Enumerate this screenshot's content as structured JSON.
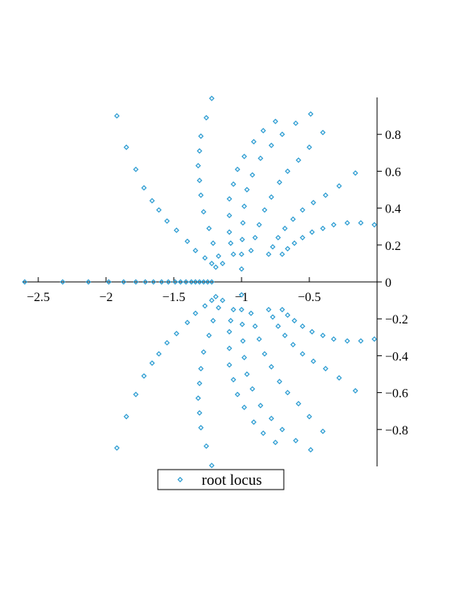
{
  "chart_data": {
    "type": "scatter",
    "series": [
      {
        "name": "root locus",
        "color": "#2a9bd1",
        "x": [
          -1.92,
          -1.85,
          -1.78,
          -1.72,
          -1.66,
          -1.61,
          -1.55,
          -1.48,
          -1.4,
          -1.34,
          -1.27,
          -1.22,
          -1.19,
          -1.22,
          -1.26,
          -1.3,
          -1.31,
          -1.32,
          -1.31,
          -1.3,
          -1.28,
          -1.24,
          -1.21,
          -1.17,
          -1.14,
          -0.75,
          -0.84,
          -0.91,
          -0.98,
          -1.03,
          -1.06,
          -1.09,
          -1.09,
          -1.09,
          -1.08,
          -1.06,
          -0.49,
          -0.6,
          -0.7,
          -0.78,
          -0.86,
          -0.92,
          -0.96,
          -0.98,
          -0.99,
          -0.995,
          -1.0,
          -1.0,
          -0.4,
          -0.5,
          -0.58,
          -0.66,
          -0.72,
          -0.78,
          -0.83,
          -0.87,
          -0.9,
          -0.93,
          -0.16,
          -0.28,
          -0.38,
          -0.47,
          -0.55,
          -0.62,
          -0.68,
          -0.73,
          -0.77,
          -0.8,
          -0.02,
          -0.12,
          -0.22,
          -0.32,
          -0.4,
          -0.48,
          -0.55,
          -0.61,
          -0.66,
          -0.7,
          -2.6,
          -2.32,
          -2.13,
          -1.98,
          -1.87,
          -1.78,
          -1.71,
          -1.65,
          -1.59,
          -1.54,
          -1.49,
          -1.45,
          -1.41,
          -1.37,
          -1.34,
          -1.31,
          -1.28,
          -1.25,
          -1.22,
          -1.92,
          -1.85,
          -1.78,
          -1.72,
          -1.66,
          -1.61,
          -1.55,
          -1.48,
          -1.4,
          -1.34,
          -1.27,
          -1.22,
          -1.19,
          -1.22,
          -1.26,
          -1.3,
          -1.31,
          -1.32,
          -1.31,
          -1.3,
          -1.28,
          -1.24,
          -1.21,
          -1.17,
          -1.14,
          -0.75,
          -0.84,
          -0.91,
          -0.98,
          -1.03,
          -1.06,
          -1.09,
          -1.09,
          -1.09,
          -1.08,
          -1.06,
          -0.49,
          -0.6,
          -0.7,
          -0.78,
          -0.86,
          -0.92,
          -0.96,
          -0.98,
          -0.99,
          -0.995,
          -1.0,
          -1.0,
          -0.4,
          -0.5,
          -0.58,
          -0.66,
          -0.72,
          -0.78,
          -0.83,
          -0.87,
          -0.9,
          -0.93,
          -0.16,
          -0.28,
          -0.38,
          -0.47,
          -0.55,
          -0.62,
          -0.68,
          -0.73,
          -0.77,
          -0.8,
          -0.02,
          -0.12,
          -0.22,
          -0.32,
          -0.4,
          -0.48,
          -0.55,
          -0.61,
          -0.66,
          -0.7
        ],
        "values": [
          0.9,
          0.73,
          0.61,
          0.51,
          0.44,
          0.39,
          0.33,
          0.28,
          0.22,
          0.17,
          0.13,
          0.1,
          0.08,
          0.995,
          0.89,
          0.79,
          0.71,
          0.63,
          0.55,
          0.47,
          0.38,
          0.29,
          0.21,
          0.14,
          0.1,
          0.87,
          0.82,
          0.76,
          0.68,
          0.61,
          0.53,
          0.45,
          0.36,
          0.27,
          0.21,
          0.15,
          0.91,
          0.86,
          0.8,
          0.74,
          0.67,
          0.58,
          0.5,
          0.41,
          0.32,
          0.23,
          0.15,
          0.07,
          0.81,
          0.73,
          0.66,
          0.6,
          0.54,
          0.46,
          0.39,
          0.31,
          0.24,
          0.17,
          0.59,
          0.52,
          0.47,
          0.43,
          0.39,
          0.34,
          0.29,
          0.24,
          0.19,
          0.15,
          0.31,
          0.32,
          0.32,
          0.31,
          0.29,
          0.27,
          0.24,
          0.21,
          0.18,
          0.15,
          0,
          0,
          0,
          0,
          0,
          0,
          0,
          0,
          0,
          0,
          0,
          0,
          0,
          0,
          0,
          0,
          0,
          0,
          0,
          -0.9,
          -0.73,
          -0.61,
          -0.51,
          -0.44,
          -0.39,
          -0.33,
          -0.28,
          -0.22,
          -0.17,
          -0.13,
          -0.1,
          -0.08,
          -0.995,
          -0.89,
          -0.79,
          -0.71,
          -0.63,
          -0.55,
          -0.47,
          -0.38,
          -0.29,
          -0.21,
          -0.14,
          -0.1,
          -0.87,
          -0.82,
          -0.76,
          -0.68,
          -0.61,
          -0.53,
          -0.45,
          -0.36,
          -0.27,
          -0.21,
          -0.15,
          -0.91,
          -0.86,
          -0.8,
          -0.74,
          -0.67,
          -0.58,
          -0.5,
          -0.41,
          -0.32,
          -0.23,
          -0.15,
          -0.07,
          -0.81,
          -0.73,
          -0.66,
          -0.6,
          -0.54,
          -0.46,
          -0.39,
          -0.31,
          -0.24,
          -0.17,
          -0.59,
          -0.52,
          -0.47,
          -0.43,
          -0.39,
          -0.34,
          -0.29,
          -0.24,
          -0.19,
          -0.15,
          -0.31,
          -0.32,
          -0.32,
          -0.31,
          -0.29,
          -0.27,
          -0.24,
          -0.21,
          -0.18,
          -0.15
        ]
      }
    ],
    "xlim": [
      -2.6,
      0
    ],
    "ylim": [
      -1,
      1
    ],
    "xticks": [
      {
        "value": -2.5,
        "label": "−2.5"
      },
      {
        "value": -2,
        "label": "−2"
      },
      {
        "value": -1.5,
        "label": "−1.5"
      },
      {
        "value": -1,
        "label": "−1"
      },
      {
        "value": -0.5,
        "label": "−0.5"
      }
    ],
    "yticks": [
      {
        "value": -0.8,
        "label": "−0.8"
      },
      {
        "value": -0.6,
        "label": "−0.6"
      },
      {
        "value": -0.4,
        "label": "−0.4"
      },
      {
        "value": -0.2,
        "label": "−0.2"
      },
      0,
      0.2,
      0.4,
      0.6,
      0.8
    ],
    "legend": "bottom"
  }
}
